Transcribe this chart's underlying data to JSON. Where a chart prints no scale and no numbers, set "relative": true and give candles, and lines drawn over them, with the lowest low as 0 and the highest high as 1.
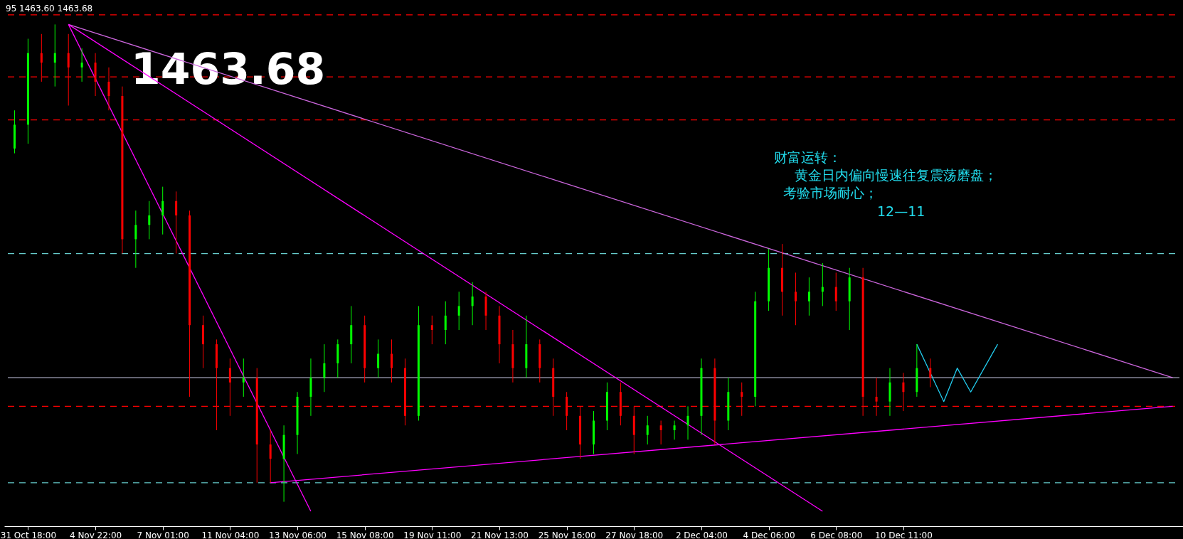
{
  "chart_data": {
    "type": "candlestick",
    "relative": true,
    "grid": false,
    "categories": [
      null,
      "31 Oct 18:00",
      null,
      null,
      null,
      null,
      "4 Nov 22:00",
      null,
      null,
      null,
      null,
      "7 Nov 01:00",
      null,
      null,
      null,
      null,
      "11 Nov 04:00",
      null,
      null,
      null,
      null,
      "13 Nov 06:00",
      null,
      null,
      null,
      null,
      "15 Nov 08:00",
      null,
      null,
      null,
      null,
      "19 Nov 11:00",
      null,
      null,
      null,
      null,
      "21 Nov 13:00",
      null,
      null,
      null,
      null,
      "25 Nov 16:00",
      null,
      null,
      null,
      null,
      "27 Nov 18:00",
      null,
      null,
      null,
      null,
      "2 Dec 04:00",
      null,
      null,
      null,
      null,
      "4 Dec 06:00",
      null,
      null,
      null,
      null,
      "6 Dec 08:00",
      null,
      null,
      null,
      null,
      "10 Dec 11:00",
      null,
      null,
      null,
      null,
      null,
      null,
      null,
      null,
      null,
      null,
      null,
      null,
      null,
      null,
      null,
      null,
      null,
      null,
      null,
      null
    ],
    "ohlc": [
      [
        0.74,
        0.82,
        0.73,
        0.79
      ],
      [
        0.79,
        0.97,
        0.75,
        0.94
      ],
      [
        0.94,
        0.98,
        0.88,
        0.92
      ],
      [
        0.92,
        1.0,
        0.87,
        0.94
      ],
      [
        0.94,
        0.98,
        0.83,
        0.91
      ],
      [
        0.91,
        0.95,
        0.88,
        0.92
      ],
      [
        0.92,
        0.94,
        0.85,
        0.88
      ],
      [
        0.88,
        0.91,
        0.82,
        0.85
      ],
      [
        0.85,
        0.87,
        0.52,
        0.55
      ],
      [
        0.55,
        0.61,
        0.49,
        0.58
      ],
      [
        0.58,
        0.63,
        0.55,
        0.6
      ],
      [
        0.6,
        0.66,
        0.56,
        0.63
      ],
      [
        0.63,
        0.65,
        0.52,
        0.6
      ],
      [
        0.6,
        0.61,
        0.22,
        0.37
      ],
      [
        0.37,
        0.39,
        0.28,
        0.33
      ],
      [
        0.33,
        0.34,
        0.15,
        0.28
      ],
      [
        0.28,
        0.3,
        0.18,
        0.25
      ],
      [
        0.25,
        0.3,
        0.22,
        0.26
      ],
      [
        0.26,
        0.28,
        0.04,
        0.12
      ],
      [
        0.12,
        0.15,
        0.04,
        0.09
      ],
      [
        0.09,
        0.16,
        0.0,
        0.14
      ],
      [
        0.14,
        0.23,
        0.1,
        0.22
      ],
      [
        0.22,
        0.3,
        0.18,
        0.26
      ],
      [
        0.26,
        0.33,
        0.23,
        0.29
      ],
      [
        0.29,
        0.34,
        0.26,
        0.33
      ],
      [
        0.33,
        0.41,
        0.29,
        0.37
      ],
      [
        0.37,
        0.39,
        0.25,
        0.28
      ],
      [
        0.28,
        0.34,
        0.26,
        0.31
      ],
      [
        0.31,
        0.34,
        0.25,
        0.28
      ],
      [
        0.28,
        0.3,
        0.16,
        0.18
      ],
      [
        0.18,
        0.41,
        0.17,
        0.37
      ],
      [
        0.37,
        0.39,
        0.33,
        0.36
      ],
      [
        0.36,
        0.42,
        0.33,
        0.39
      ],
      [
        0.39,
        0.44,
        0.36,
        0.41
      ],
      [
        0.41,
        0.46,
        0.37,
        0.43
      ],
      [
        0.43,
        0.44,
        0.36,
        0.39
      ],
      [
        0.39,
        0.41,
        0.29,
        0.33
      ],
      [
        0.33,
        0.36,
        0.25,
        0.28
      ],
      [
        0.28,
        0.39,
        0.26,
        0.33
      ],
      [
        0.33,
        0.34,
        0.25,
        0.28
      ],
      [
        0.28,
        0.3,
        0.18,
        0.22
      ],
      [
        0.22,
        0.23,
        0.15,
        0.18
      ],
      [
        0.18,
        0.2,
        0.09,
        0.12
      ],
      [
        0.12,
        0.19,
        0.1,
        0.17
      ],
      [
        0.17,
        0.25,
        0.15,
        0.23
      ],
      [
        0.23,
        0.25,
        0.16,
        0.18
      ],
      [
        0.18,
        0.2,
        0.1,
        0.14
      ],
      [
        0.14,
        0.18,
        0.12,
        0.16
      ],
      [
        0.16,
        0.17,
        0.12,
        0.15
      ],
      [
        0.15,
        0.17,
        0.13,
        0.16
      ],
      [
        0.16,
        0.2,
        0.13,
        0.18
      ],
      [
        0.18,
        0.3,
        0.14,
        0.28
      ],
      [
        0.28,
        0.3,
        0.12,
        0.17
      ],
      [
        0.17,
        0.26,
        0.15,
        0.23
      ],
      [
        0.23,
        0.25,
        0.18,
        0.22
      ],
      [
        0.22,
        0.44,
        0.2,
        0.42
      ],
      [
        0.42,
        0.53,
        0.4,
        0.49
      ],
      [
        0.49,
        0.54,
        0.39,
        0.44
      ],
      [
        0.44,
        0.48,
        0.37,
        0.42
      ],
      [
        0.42,
        0.47,
        0.39,
        0.44
      ],
      [
        0.44,
        0.5,
        0.41,
        0.45
      ],
      [
        0.45,
        0.48,
        0.4,
        0.42
      ],
      [
        0.42,
        0.49,
        0.36,
        0.47
      ],
      [
        0.47,
        0.49,
        0.18,
        0.22
      ],
      [
        0.22,
        0.26,
        0.18,
        0.21
      ],
      [
        0.21,
        0.28,
        0.18,
        0.25
      ],
      [
        0.25,
        0.27,
        0.19,
        0.23
      ],
      [
        0.23,
        0.33,
        0.22,
        0.28
      ],
      [
        0.28,
        0.3,
        0.24,
        0.26
      ],
      null,
      null,
      null,
      null,
      null,
      null,
      null,
      null,
      null,
      null,
      null,
      null,
      null,
      null,
      null,
      null,
      null,
      null
    ],
    "colors": [
      "#00ff00",
      "#00ff00",
      "#ff0000",
      "#00ff00",
      "#ff0000",
      "#00ff00",
      "#ff0000",
      "#ff0000",
      "#ff0000",
      "#00ff00",
      "#00ff00",
      "#00ff00",
      "#ff0000",
      "#ff0000",
      "#ff0000",
      "#ff0000",
      "#ff0000",
      "#00ff00",
      "#ff0000",
      "#ff0000",
      "#00ff00",
      "#00ff00",
      "#00ff00",
      "#00ff00",
      "#00ff00",
      "#00ff00",
      "#ff0000",
      "#00ff00",
      "#ff0000",
      "#ff0000",
      "#00ff00",
      "#ff0000",
      "#00ff00",
      "#00ff00",
      "#00ff00",
      "#ff0000",
      "#ff0000",
      "#ff0000",
      "#00ff00",
      "#ff0000",
      "#ff0000",
      "#ff0000",
      "#ff0000",
      "#00ff00",
      "#00ff00",
      "#ff0000",
      "#ff0000",
      "#00ff00",
      "#ff0000",
      "#00ff00",
      "#00ff00",
      "#00ff00",
      "#ff0000",
      "#00ff00",
      "#ff0000",
      "#00ff00",
      "#00ff00",
      "#ff0000",
      "#ff0000",
      "#00ff00",
      "#00ff00",
      "#ff0000",
      "#00ff00",
      "#ff0000",
      "#ff0000",
      "#00ff00",
      "#ff0000",
      "#00ff00",
      "#ff0000",
      null,
      null,
      null,
      null,
      null,
      null,
      null,
      null,
      null,
      null,
      null,
      null,
      null,
      null,
      null,
      null,
      null,
      null
    ],
    "ref_lines": [
      {
        "axis": "y",
        "value": 1.02,
        "color": "#ff0000",
        "line_style": "dashed"
      },
      {
        "axis": "y",
        "value": 0.89,
        "color": "#ff0000",
        "line_style": "dashed"
      },
      {
        "axis": "y",
        "value": 0.8,
        "color": "#ff0000",
        "line_style": "dashed"
      },
      {
        "axis": "y",
        "value": 0.52,
        "color": "#66cccc",
        "line_style": "dashed"
      },
      {
        "axis": "y",
        "value": 0.26,
        "color": "#a8a8c0",
        "line_style": "solid"
      },
      {
        "axis": "y",
        "value": 0.2,
        "color": "#ff0000",
        "line_style": "dashed"
      },
      {
        "axis": "y",
        "value": 0.04,
        "color": "#66cccc",
        "line_style": "dashed"
      }
    ],
    "series": [
      {
        "type": "line",
        "color": "#cc66dd",
        "values": [
          null,
          null,
          null,
          null,
          1.0,
          null,
          null,
          null,
          null,
          null,
          null,
          null,
          null,
          null,
          null,
          null,
          null,
          null,
          null,
          null,
          null,
          null,
          null,
          null,
          null,
          null,
          null,
          null,
          null,
          null,
          null,
          null,
          null,
          null,
          null,
          null,
          null,
          null,
          null,
          null,
          null,
          null,
          null,
          null,
          null,
          null,
          null,
          null,
          null,
          null,
          null,
          null,
          null,
          null,
          null,
          null,
          null,
          null,
          null,
          null,
          null,
          null,
          null,
          null,
          null,
          null,
          null,
          null,
          null,
          null,
          null,
          null,
          null,
          null,
          null,
          null,
          null,
          null,
          null,
          null,
          null,
          null,
          null,
          null,
          null,
          null,
          0.26
        ]
      },
      {
        "type": "line",
        "color": "#ff00ff",
        "values": [
          null,
          null,
          null,
          null,
          1.0,
          null,
          null,
          null,
          null,
          null,
          null,
          null,
          null,
          null,
          null,
          null,
          null,
          null,
          null,
          null,
          null,
          null,
          null,
          null,
          null,
          null,
          null,
          null,
          null,
          null,
          null,
          null,
          null,
          null,
          null,
          null,
          null,
          null,
          null,
          null,
          null,
          null,
          null,
          null,
          null,
          null,
          null,
          null,
          null,
          null,
          null,
          null,
          null,
          null,
          null,
          null,
          null,
          null,
          null,
          null,
          -0.02,
          null,
          null,
          null,
          null,
          null,
          null,
          null,
          null,
          null,
          null,
          null,
          null,
          null,
          null,
          null,
          null,
          null,
          null,
          null,
          null,
          null,
          null,
          null,
          null,
          null,
          null
        ]
      },
      {
        "type": "line",
        "color": "#ff00ff",
        "values": [
          null,
          null,
          null,
          null,
          1.0,
          null,
          null,
          null,
          null,
          null,
          null,
          null,
          null,
          null,
          null,
          null,
          null,
          null,
          null,
          null,
          null,
          null,
          -0.02,
          null,
          null,
          null,
          null,
          null,
          null,
          null,
          null,
          null,
          null,
          null,
          null,
          null,
          null,
          null,
          null,
          null,
          null,
          null,
          null,
          null,
          null,
          null,
          null,
          null,
          null,
          null,
          null,
          null,
          null,
          null,
          null,
          null,
          null,
          null,
          null,
          null,
          null,
          null,
          null,
          null,
          null,
          null,
          null,
          null,
          null,
          null,
          null,
          null,
          null,
          null,
          null,
          null,
          null,
          null,
          null,
          null,
          null,
          null,
          null,
          null,
          null,
          null,
          null
        ]
      },
      {
        "type": "line",
        "color": "#ff00ff",
        "values": [
          null,
          null,
          null,
          null,
          null,
          null,
          null,
          null,
          null,
          null,
          null,
          null,
          null,
          null,
          null,
          null,
          null,
          null,
          null,
          0.04,
          null,
          null,
          null,
          null,
          null,
          null,
          null,
          null,
          null,
          null,
          null,
          null,
          null,
          null,
          null,
          null,
          null,
          null,
          null,
          null,
          null,
          null,
          null,
          null,
          null,
          null,
          null,
          null,
          null,
          null,
          null,
          null,
          null,
          null,
          null,
          null,
          null,
          null,
          null,
          null,
          null,
          null,
          null,
          null,
          null,
          null,
          null,
          null,
          null,
          null,
          null,
          null,
          null,
          null,
          null,
          null,
          null,
          null,
          null,
          null,
          null,
          null,
          null,
          null,
          null,
          null,
          0.2
        ]
      },
      {
        "type": "line",
        "color": "#22ccee",
        "values": [
          null,
          null,
          null,
          null,
          null,
          null,
          null,
          null,
          null,
          null,
          null,
          null,
          null,
          null,
          null,
          null,
          null,
          null,
          null,
          null,
          null,
          null,
          null,
          null,
          null,
          null,
          null,
          null,
          null,
          null,
          null,
          null,
          null,
          null,
          null,
          null,
          null,
          null,
          null,
          null,
          null,
          null,
          null,
          null,
          null,
          null,
          null,
          null,
          null,
          null,
          null,
          null,
          null,
          null,
          null,
          null,
          null,
          null,
          null,
          null,
          null,
          null,
          null,
          null,
          null,
          null,
          null,
          0.33,
          null,
          0.21,
          0.28,
          0.23,
          0.28,
          0.33,
          null,
          null,
          null,
          null,
          null,
          null,
          null,
          null,
          null,
          null,
          null,
          null,
          null
        ]
      }
    ],
    "annotations": [
      "95 1463.60 1463.68",
      "1463.68",
      "财富运转：",
      "黄金日内偏向慢速往复震荡磨盘；",
      "考验市场耐心；",
      "12—11"
    ]
  }
}
